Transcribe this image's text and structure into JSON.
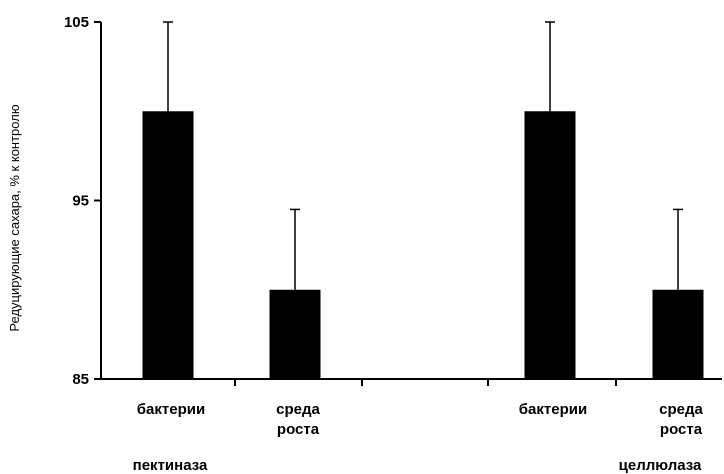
{
  "chart_data": {
    "type": "bar",
    "title": "",
    "xlabel": "",
    "ylabel": "Редуцирующие сахара, % к контролю",
    "ylim": [
      85,
      105
    ],
    "yticks": [
      85,
      95,
      105
    ],
    "grid": false,
    "legend": "none",
    "bar_color": "#000000",
    "groups": [
      {
        "name": "пектиназа",
        "categories": [
          {
            "lines": [
              "бактерии"
            ],
            "value": 100,
            "error": 5
          },
          {
            "lines": [
              "среда",
              "роста"
            ],
            "value": 90,
            "error": 4.5
          }
        ]
      },
      {
        "name": "целлюлаза",
        "categories": [
          {
            "lines": [
              "бактерии"
            ],
            "value": 100,
            "error": 5
          },
          {
            "lines": [
              "среда",
              "роста"
            ],
            "value": 90,
            "error": 4.5
          }
        ]
      }
    ]
  }
}
